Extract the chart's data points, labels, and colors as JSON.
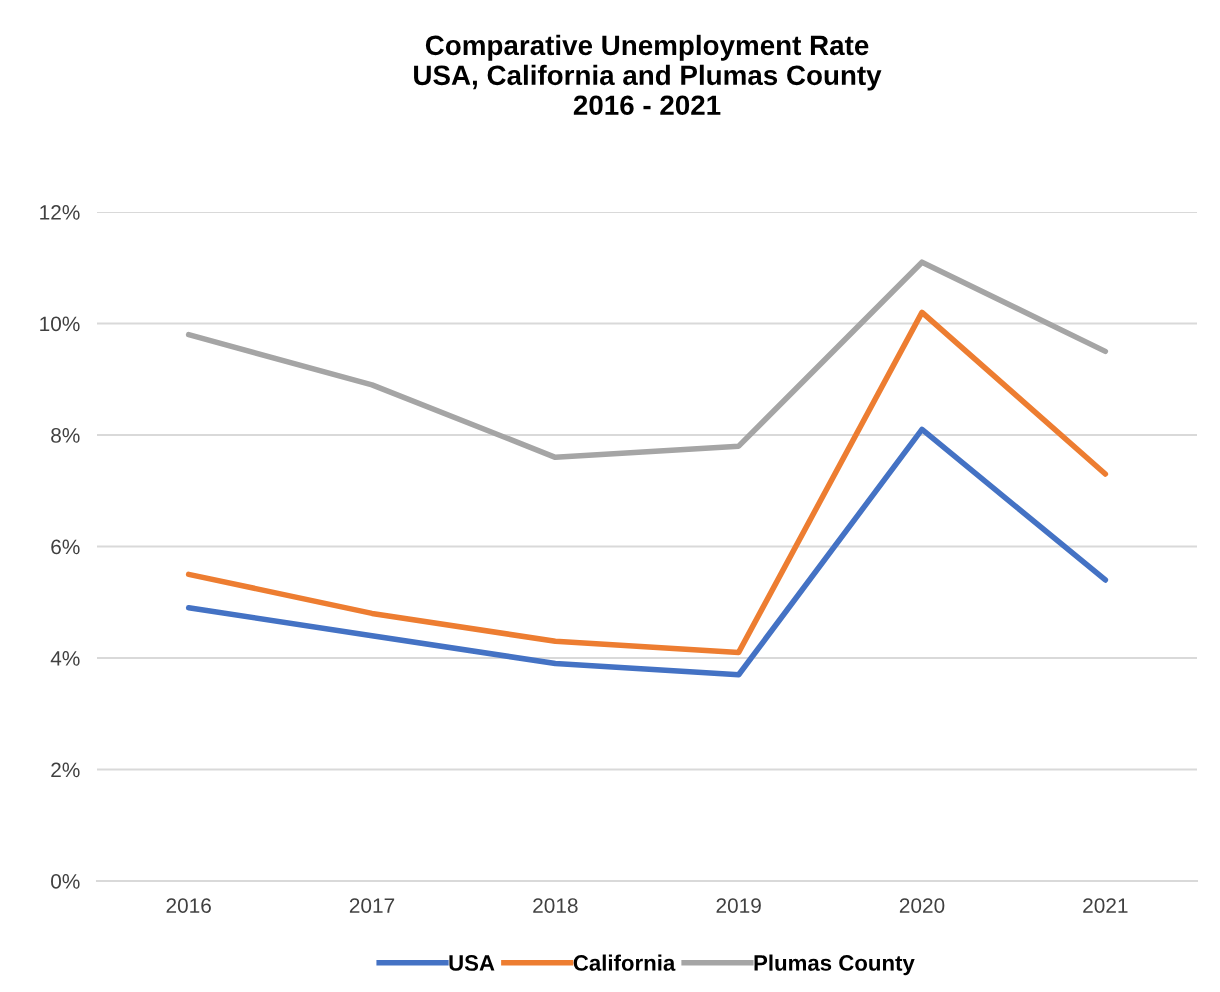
{
  "chart_data": {
    "type": "line",
    "title": "Comparative Unemployment Rate\nUSA, California and Plumas County\n2016 - 2021",
    "categories": [
      "2016",
      "2017",
      "2018",
      "2019",
      "2020",
      "2021"
    ],
    "series": [
      {
        "name": "USA",
        "color": "#4472c4",
        "values": [
          4.9,
          4.4,
          3.9,
          3.7,
          8.1,
          5.4
        ]
      },
      {
        "name": "California",
        "color": "#ed7d31",
        "values": [
          5.5,
          4.8,
          4.3,
          4.1,
          10.2,
          7.3
        ]
      },
      {
        "name": "Plumas County",
        "color": "#a5a5a5",
        "values": [
          9.8,
          8.9,
          7.6,
          7.8,
          11.1,
          9.5
        ]
      }
    ],
    "ylim": [
      0,
      12
    ],
    "yticks": [
      {
        "value": 0,
        "label": "0%"
      },
      {
        "value": 2,
        "label": "2%"
      },
      {
        "value": 4,
        "label": "4%"
      },
      {
        "value": 6,
        "label": "6%"
      },
      {
        "value": 8,
        "label": "8%"
      },
      {
        "value": 10,
        "label": "10%"
      },
      {
        "value": 12,
        "label": "12%"
      }
    ],
    "grid": "y",
    "legend": "bottom",
    "marker": "none",
    "line_style": "solid"
  }
}
